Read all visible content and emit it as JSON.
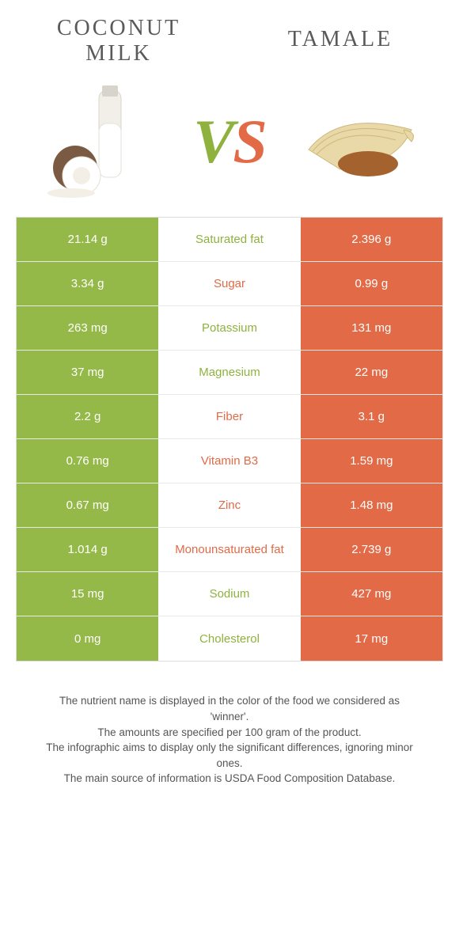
{
  "colors": {
    "left": "#94b948",
    "right": "#e26a46",
    "left_text": "#8fb23e",
    "right_text": "#e26a46",
    "name_bg": "#ffffff",
    "row_border": "#e8e8e8"
  },
  "food_left": {
    "title": "Coconut\nmilk"
  },
  "food_right": {
    "title": "Tamale"
  },
  "vs": {
    "v": "V",
    "s": "S"
  },
  "rows": [
    {
      "name": "Saturated fat",
      "left": "21.14 g",
      "right": "2.396 g",
      "winner": "left"
    },
    {
      "name": "Sugar",
      "left": "3.34 g",
      "right": "0.99 g",
      "winner": "right"
    },
    {
      "name": "Potassium",
      "left": "263 mg",
      "right": "131 mg",
      "winner": "left"
    },
    {
      "name": "Magnesium",
      "left": "37 mg",
      "right": "22 mg",
      "winner": "left"
    },
    {
      "name": "Fiber",
      "left": "2.2 g",
      "right": "3.1 g",
      "winner": "right"
    },
    {
      "name": "Vitamin B3",
      "left": "0.76 mg",
      "right": "1.59 mg",
      "winner": "right"
    },
    {
      "name": "Zinc",
      "left": "0.67 mg",
      "right": "1.48 mg",
      "winner": "right"
    },
    {
      "name": "Monounsaturated fat",
      "left": "1.014 g",
      "right": "2.739 g",
      "winner": "right"
    },
    {
      "name": "Sodium",
      "left": "15 mg",
      "right": "427 mg",
      "winner": "left"
    },
    {
      "name": "Cholesterol",
      "left": "0 mg",
      "right": "17 mg",
      "winner": "left"
    }
  ],
  "footer": {
    "l1": "The nutrient name is displayed in the color of the food we considered as 'winner'.",
    "l2": "The amounts are specified per 100 gram of the product.",
    "l3": "The infographic aims to display only the significant differences, ignoring minor ones.",
    "l4": "The main source of information is USDA Food Composition Database."
  }
}
